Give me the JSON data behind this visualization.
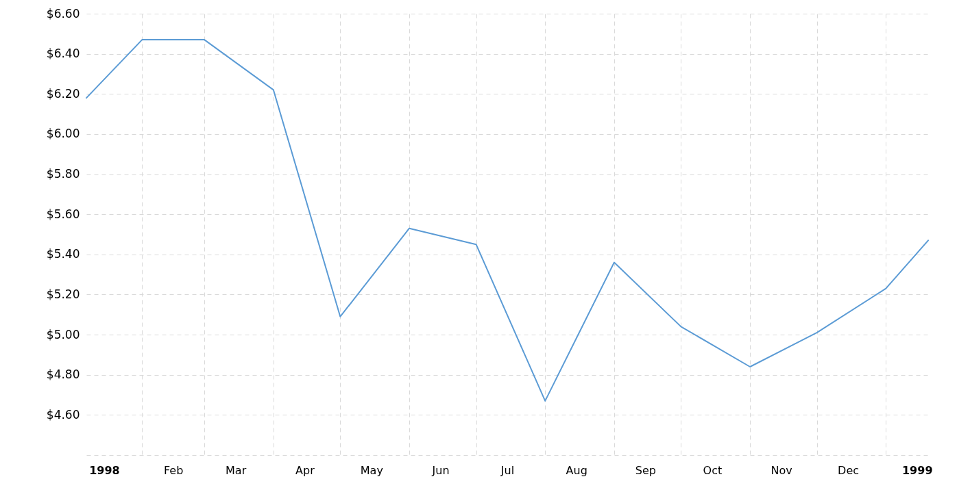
{
  "chart_data": {
    "type": "line",
    "x": [
      "1998-01-07",
      "1998-02-01",
      "1998-03-01",
      "1998-04-01",
      "1998-05-01",
      "1998-06-01",
      "1998-07-01",
      "1998-08-01",
      "1998-09-01",
      "1998-10-01",
      "1998-11-01",
      "1998-12-01",
      "1999-01-01",
      "1999-01-20"
    ],
    "series": [
      {
        "color": "#5b9bd5",
        "values": [
          6.18,
          6.47,
          6.47,
          6.22,
          5.09,
          5.53,
          5.45,
          4.67,
          5.36,
          5.04,
          4.84,
          5.01,
          5.23,
          5.47
        ]
      }
    ],
    "xlim": [
      "1998-01-07",
      "1999-01-20"
    ],
    "xticks": [
      {
        "value": "1998-01-15",
        "label": "1998"
      },
      {
        "value": "1998-02-01",
        "label": null
      },
      {
        "value": "1998-02-15",
        "label": "Feb"
      },
      {
        "value": "1998-03-01",
        "label": null
      },
      {
        "value": "1998-03-15",
        "label": "Mar"
      },
      {
        "value": "1998-04-01",
        "label": null
      },
      {
        "value": "1998-04-15",
        "label": "Apr"
      },
      {
        "value": "1998-05-01",
        "label": null
      },
      {
        "value": "1998-05-15",
        "label": "May"
      },
      {
        "value": "1998-06-01",
        "label": null
      },
      {
        "value": "1998-06-15",
        "label": "Jun"
      },
      {
        "value": "1998-07-01",
        "label": null
      },
      {
        "value": "1998-07-15",
        "label": "Jul"
      },
      {
        "value": "1998-08-01",
        "label": null
      },
      {
        "value": "1998-08-15",
        "label": "Aug"
      },
      {
        "value": "1998-09-01",
        "label": null
      },
      {
        "value": "1998-09-15",
        "label": "Sep"
      },
      {
        "value": "1998-10-01",
        "label": null
      },
      {
        "value": "1998-10-15",
        "label": "Oct"
      },
      {
        "value": "1998-11-01",
        "label": null
      },
      {
        "value": "1998-11-15",
        "label": "Nov"
      },
      {
        "value": "1998-12-01",
        "label": null
      },
      {
        "value": "1998-12-15",
        "label": "Dec"
      },
      {
        "value": "1999-01-01",
        "label": null
      },
      {
        "value": "1999-01-15",
        "label": "1999"
      }
    ],
    "ylim": [
      4.4,
      6.6
    ],
    "yticks": [
      {
        "value": 4.4,
        "label": null
      },
      {
        "value": 4.6,
        "label": "$4.60"
      },
      {
        "value": 4.8,
        "label": "$4.80"
      },
      {
        "value": 5.0,
        "label": "$5.00"
      },
      {
        "value": 5.2,
        "label": "$5.20"
      },
      {
        "value": 5.4,
        "label": "$5.40"
      },
      {
        "value": 5.6,
        "label": "$5.60"
      },
      {
        "value": 5.8,
        "label": "$5.80"
      },
      {
        "value": 6.0,
        "label": "$6.00"
      },
      {
        "value": 6.2,
        "label": "$6.20"
      },
      {
        "value": 6.4,
        "label": "$6.40"
      },
      {
        "value": 6.6,
        "label": "$6.60"
      }
    ],
    "grid": true
  }
}
